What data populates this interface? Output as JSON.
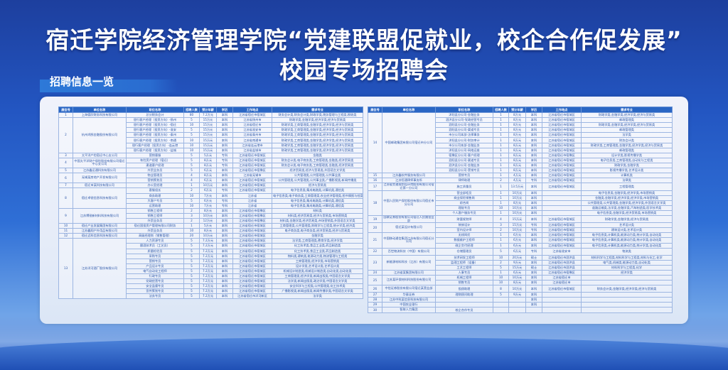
{
  "title": {
    "line1": "宿迁学院经济管理学院“党建联盟促就业，校企合作促发展”",
    "line2": "校园专场招聘会"
  },
  "section_title": "招聘信息一览",
  "columns": [
    "展位号",
    "单位名称",
    "职位名称",
    "招聘人数",
    "预计年薪",
    "学历",
    "工作地点",
    "需求专业"
  ],
  "colors": {
    "header_bg": "#2a66c4",
    "text": "#2b56a8",
    "background": "#2356c2"
  },
  "left_table": [
    {
      "booth": "1",
      "company": "上海德欣财务科技有限公司",
      "rows": [
        [
          "总分税务会计",
          "80",
          "7.2万元",
          "本科",
          "江苏省宿迁市宿城区",
          "财务会计类,财务会计类,财政学类,税务管理与工程类,税收类"
        ]
      ]
    },
    {
      "booth": "2",
      "company": "杭州鸿鹄金融股份有限公司",
      "rows": [
        [
          "银行客户经理（投资方向）-扬州",
          "5",
          "15万元",
          "本科",
          "江苏省扬州市",
          "财政学类,金融学类,经济学类,经济与贸易类"
        ],
        [
          "银行客户经理（投资方向）-宿迁",
          "10",
          "15万元",
          "本科",
          "江苏省宿迁市",
          "财政学类,工商管理类,金融学类,经济学类,经济与贸易类"
        ],
        [
          "银行客户经理（投资方向）-淮安",
          "5",
          "15万元",
          "本科",
          "江苏省淮安市",
          "财政学类,工商管理类,金融学类,经济学类,经济与贸易类"
        ],
        [
          "银行客户经理（投资方向）-泰州",
          "5",
          "15万元",
          "本科",
          "江苏省泰州市",
          "财政学类,工商管理类,金融学类,经济学类,经济与贸易类"
        ],
        [
          "银行客户经理（投资方向）-南通",
          "10",
          "15万元",
          "本科",
          "江苏省南通市",
          "财政学类,工商管理类,金融学类,经济学类,经济与贸易类"
        ],
        [
          "银行客户经理（投资方向）-连云港",
          "10",
          "15万元",
          "本科",
          "江苏省连云港市",
          "财政学类,工商管理类,金融学类,经济学类,经济与贸易类"
        ],
        [
          "银行客户经理（投资方向）-盐城",
          "10",
          "15万元",
          "本科",
          "江苏省盐城市",
          "财政学类,工商管理类,金融学类,经济学类,经济与贸易类"
        ]
      ]
    },
    {
      "booth": "3",
      "company": "太平洋产险宿迁中心支公司",
      "rows": [
        [
          "营销客服",
          "5",
          "5万元",
          "专科",
          "江苏省宿迁市宿城区",
          "金融类"
        ]
      ]
    },
    {
      "booth": "4",
      "company": "中国太平洋财产保险股份有限公司宿迁中心支公司",
      "rows": [
        [
          "车险资产经理（宿迁）",
          "5",
          "8万元",
          "专科",
          "江苏省宿迁市宿城区",
          "财务会计类,电子商务类,工商管理类,金融类,经济贸易类"
        ],
        [
          "渠道客户经理",
          "5",
          "8万元",
          "专科",
          "江苏省宿迁市宿城区",
          "财务会计类,电子商务类,工商管理类,金融类,经济贸易类"
        ]
      ]
    },
    {
      "booth": "5",
      "company": "江苏鑫运通科技有限公司",
      "rows": [
        [
          "外贸业务员",
          "5",
          "6万元",
          "本科",
          "江苏省宿迁市宿豫区",
          "经济贸易类,经济与贸易类,外国语言文学类"
        ]
      ]
    },
    {
      "booth": "6",
      "company": "无锡某房地产开发有限公司",
      "rows": [
        [
          "物业管理员",
          "4",
          "8万元",
          "本科",
          "江苏省无锡市",
          "公共管理类,公共管理类,公共事业类"
        ],
        [
          "营销策划员",
          "4",
          "6万元",
          "本科",
          "江苏省宿迁市宿城区",
          "公共管理类,公共管理类,公共事业类,广播影视类,新闻传播类"
        ]
      ]
    },
    {
      "booth": "7",
      "company": "宿迁市某科技有限公司",
      "rows": [
        [
          "办公室经理",
          "1",
          "10万元",
          "本科",
          "江苏省宿迁市宿城区",
          "经济与贸易类"
        ]
      ]
    },
    {
      "booth": "8",
      "company": "宿迁卓锐信息科技有限公司",
      "rows": [
        [
          "客服组长",
          "2",
          "6万元",
          "专科",
          "江苏省宿迁市宿城区",
          "电子信息类,集成电路类,计算机类,通信类"
        ],
        [
          "商务助理",
          "10",
          "7万元",
          "本科",
          "江苏省",
          "电子信息类,电子商务类,工商管理类,农业经济管理类,图书情报与档案管理类"
        ],
        [
          "大客户专员",
          "5",
          "6万元",
          "专科",
          "江苏省",
          "电子信息类,集成电路类,计算机类,通信类"
        ],
        [
          "运营助理",
          "10",
          "7万元",
          "专科",
          "江苏省",
          "电子信息类,集成电路类,计算机类,通信类"
        ]
      ]
    },
    {
      "booth": "9",
      "company": "江苏博锐新材料科技有限公司",
      "rows": [
        [
          "销售工程师",
          "2",
          "8万元",
          "本科",
          "江苏省宿迁市宿豫区",
          "材料类"
        ],
        [
          "销售工程师",
          "3",
          "10万元",
          "本科",
          "江苏省宿迁市宿豫区",
          "材料类,经济贸易类,经济与贸易类,市场营销类"
        ],
        [
          "外贸业务员",
          "2",
          "12万元",
          "本科",
          "江苏省宿迁市宿豫区",
          "材料类,金融学类,经济贸易类,市场营销类,外国语言文学类"
        ]
      ]
    },
    {
      "booth": "10",
      "company": "宿迁产业发展集团有限公司",
      "rows": [
        [
          "宿迁国投资产管理有限公司财务",
          "1",
          "5万元",
          "本科",
          "江苏省宿迁市宿城区",
          "工商管理类,公共管理类,财政学与工程类,统计学类,经济类"
        ]
      ]
    },
    {
      "booth": "11",
      "company": "江苏鑫翔户外用品有限公司",
      "rows": [
        [
          "外贸业务员",
          "10",
          "8万元",
          "本科",
          "江苏省宿迁市宿城区",
          "电子商务类,电子商务类,经济贸易类,经济与贸易类"
        ]
      ]
    },
    {
      "booth": "12",
      "company": "宿迁迈科信息科技有限公司",
      "rows": [
        [
          "高级经理岗（销售管理）",
          "20",
          "10万元",
          "本科",
          "江苏省宿迁市宿城区",
          "金融学类"
        ]
      ]
    },
    {
      "booth": "13",
      "company": "江苏洋河酒厂股份有限公司",
      "rows": [
        [
          "人力资源专员",
          "5",
          "7.2万元",
          "本科",
          "江苏省宿迁市宿城区",
          "法学类,工商管理类,教育学类,经济学类"
        ],
        [
          "酿酒技术员（工艺员）",
          "5",
          "7.2万元",
          "本科",
          "江苏省宿迁市宿城区",
          "化工技术类,食品工业类,药品制造类"
        ],
        [
          "质量检验员",
          "5",
          "7.2万元",
          "本科",
          "江苏省宿迁市宿城区",
          "化工技术类,食品工业类,药品制造类"
        ],
        [
          "采购专员",
          "5",
          "7.2万元",
          "本科",
          "江苏省宿迁市宿城区",
          "物料类,建筑类,能源动力类,物流管理与工程类"
        ],
        [
          "营销专员",
          "5",
          "7.2万元",
          "本科",
          "江苏省宿迁市宿城区",
          "工商管理类,经济学类,市场营销类"
        ],
        [
          "产品设计专员",
          "5",
          "7.2万元",
          "本科",
          "江苏省宿迁市宿城区",
          "设计学类,艺术设计类,艺术设计类"
        ],
        [
          "电气自动化工程师",
          "5",
          "7.2万元",
          "本科",
          "江苏省宿迁市宿城区",
          "机械设计制造类,机械设计制造类,自动化类,自动化类"
        ],
        [
          "行政专员",
          "5",
          "7.2万元",
          "本科",
          "江苏省宿迁市宿城区",
          "工商管理类,经济学类,新闻出版类,中国语言文学类"
        ],
        [
          "党政经营专员",
          "5",
          "7.2万元",
          "本科",
          "江苏省宿迁市宿城区",
          "法学类,新闻出版类,政治学类,中国语言文学类"
        ],
        [
          "安全监督专员",
          "5",
          "7.2万元",
          "本科",
          "江苏省宿迁市宿城区",
          "安全科学与工程类,公共管理类,化工技术类"
        ],
        [
          "宣传策划专员",
          "5",
          "7.2万元",
          "本科",
          "江苏省宿迁市宿城区",
          "广播影视类,新闻出版类,新闻传播学类,中国语言文学类"
        ],
        [
          "法务专员",
          "5",
          "7.2万元",
          "本科",
          "江苏省宿迁市洋河新区",
          "法学类"
        ]
      ]
    }
  ],
  "right_table": [
    {
      "booth": "14",
      "company": "中国邮政集团有限公司宿迁市分公司",
      "rows": [
        [
          "沭阳县分公司-金融业务",
          "1",
          "8万元",
          "本科",
          "江苏省宿迁市宿城区",
          "财政学类,金融学类,经济学类,经济与贸易类"
        ],
        [
          "泗洪县分公司-党政经营专员",
          "1",
          "8万元",
          "本科",
          "江苏省宿迁市宿城区",
          "邮政管理类"
        ],
        [
          "泗阳县分公司-金融业务",
          "1",
          "8万元",
          "本科",
          "江苏省宿迁市宿城区",
          "财政学类,金融学类,经济学类,经济与贸易类"
        ],
        [
          "泗阳县分公司-渠道专员",
          "1",
          "8万元",
          "本科",
          "江苏省宿迁市宿城区",
          "邮政管理类"
        ],
        [
          "市分公司本部-法律事务",
          "1",
          "8万元",
          "本科",
          "江苏省宿迁市宿城区",
          "法学类"
        ],
        [
          "沭阳县分公司-财务审计",
          "1",
          "8万元",
          "本科",
          "江苏省宿迁市宿城区",
          "财务会计类"
        ],
        [
          "市分公司本部-金融业务",
          "1",
          "8万元",
          "本科",
          "江苏省宿迁市宿城区",
          "财政学类,工商管理类,金融学类,经济学类,经济与贸易类"
        ],
        [
          "沭阳县分公司-网络运维",
          "1",
          "8万元",
          "本科",
          "江苏省宿迁市宿城区",
          "邮政管理类"
        ],
        [
          "宿豫区分公司-客户经理",
          "1",
          "8万元",
          "本科",
          "江苏省宿迁市宿豫区",
          "设计学类,影视传播学类"
        ],
        [
          "泗阳县分公司-渠道专员",
          "1",
          "8万元",
          "本科",
          "江苏省宿迁市宿城区",
          "电子信息类,工商管理类,自动化与工程类"
        ],
        [
          "泗洪县分公司-金融业务",
          "1",
          "8万元",
          "本科",
          "江苏省宿迁市宿城区",
          "财政学类,金融学类"
        ],
        [
          "泗阳县分公司-营销专员",
          "1",
          "8万元",
          "本科",
          "江苏省宿迁市宿城区",
          "影视传播学类,艺术设计类"
        ]
      ]
    },
    {
      "booth": "15",
      "company": "江苏鑫软件服务有限公司",
      "rows": [
        [
          "营销专员",
          "1",
          "4万元",
          "本科",
          "江苏省宿迁市宿城区",
          "计算机类"
        ]
      ]
    },
    {
      "booth": "16",
      "company": "江苏恒通律师事务所",
      "rows": [
        [
          "律师助理",
          "2",
          "4万元",
          "专科",
          "江苏省宿迁市宿城区",
          "法律类"
        ]
      ]
    },
    {
      "booth": "17",
      "company": "江苏省交通规划设计院股份有限公司宿迁第一分公司",
      "tall": true,
      "rows": [
        [
          "施工质量员",
          "1",
          "13.5万元",
          "本科",
          "江苏省宿迁市宿城区",
          "工程管理类"
        ]
      ]
    },
    {
      "booth": "18",
      "company": "中国人民财产保险股份有限公司宿迁市分公司",
      "rows": [
        [
          "营业部柜员",
          "1",
          "10万元",
          "本科",
          "",
          "电子信息类,金融学类,经济学类,市场营销类"
        ],
        [
          "商业保险销售岗",
          "1",
          "10万元",
          "本科",
          "",
          "金融类,金融学类,经济学类,经济学类,市场营销类"
        ],
        [
          "综合岗",
          "1",
          "8万元",
          "本科",
          "",
          "公共管理类,公共管理类,金融学类,经济学类,外国语言文学类"
        ],
        [
          "理赔专员",
          "10",
          "10万元",
          "本科",
          "",
          "道路运输类,法学类,金融学类,汽车制造类,医学技术类"
        ],
        [
          "个人客户服务专员",
          "1",
          "10万元",
          "本科",
          "",
          "电子信息类,金融学类,经济贸易类,市场营销类"
        ]
      ]
    },
    {
      "booth": "19",
      "company": "国联证券股份有限公司宿迁人民路营业部",
      "tall": true,
      "rows": [
        [
          "财富规划师",
          "4",
          "15万元",
          "本科",
          "江苏省宿迁市宿城区",
          "财政学类,金融学类,经济与贸易类"
        ]
      ]
    },
    {
      "booth": "20",
      "company": "宿迁某设计有限公司",
      "rows": [
        [
          "装修设计",
          "3",
          "15万元",
          "专科",
          "江苏省宿迁市宿城区",
          "艺术设计类"
        ],
        [
          "室内设计师",
          "2",
          "10万元",
          "专科",
          "江苏省宿迁市宿城区",
          "建筑设计类,艺术设计类"
        ]
      ]
    },
    {
      "booth": "21",
      "company": "中国移动通信集团江苏有限公司宿迁分公司",
      "rows": [
        [
          "无线网优",
          "1",
          "6万元",
          "本科",
          "江苏省宿迁市宿城区",
          "电子信息类,计算机类,能源动力类,统计学类,自动化类"
        ],
        [
          "数据维护工程师",
          "1",
          "6万元",
          "本科",
          "江苏省宿迁市宿城区",
          "电子信息类,计算机类,能源动力类,统计学类,自动化类"
        ],
        [
          "政企交付经理",
          "1",
          "6万元",
          "本科",
          "江苏省宿迁市宿城区",
          "电子信息类,计算机类,能源动力类,统计学类,自动化类"
        ]
      ]
    },
    {
      "booth": "22",
      "company": "百世物流科技（中国）有限公司",
      "tall": true,
      "rows": [
        [
          "仓储管理员",
          "5",
          "6万元",
          "专科",
          "江苏省淮安市",
          "物流类"
        ]
      ]
    },
    {
      "booth": "23",
      "company": "新能源材料科技（江苏）有限公司",
      "rows": [
        [
          "技术研发工程师",
          "10",
          "20万元",
          "硕士",
          "江苏省宿迁市泗洪县",
          "材料科学与工程类,材料科学与工程类,材料与化工,化学"
        ],
        [
          "监理工程师（设备）",
          "2",
          "9万元",
          "本科",
          "江苏省宿迁市泗洪县",
          "电气类,机械类,能源动力类,自动化类"
        ],
        [
          "工艺工程师",
          "5",
          "15万元",
          "硕士",
          "江苏省宿迁市泗洪县",
          "材料科学与工程类,化学"
        ]
      ]
    },
    {
      "booth": "24",
      "company": "江苏省某集团有限公司",
      "rows": [
        [
          "人事专员",
          "1",
          "6万元",
          "本科",
          "江苏省宿迁市宿豫区",
          "经济学类"
        ]
      ]
    },
    {
      "booth": "25",
      "company": "江苏某环保材料科技股份有限公司",
      "rows": [
        [
          "机械工程师",
          "10",
          "10万元",
          "本科",
          "江苏省宿迁市",
          ""
        ],
        [
          "销售专员",
          "10",
          "8万元",
          "本科",
          "江苏省宿迁市",
          ""
        ]
      ]
    },
    {
      "booth": "26",
      "company": "中信证券股份有限公司宿迁某营业部",
      "tall": true,
      "rows": [
        [
          "投顾助理",
          "8",
          "10万元",
          "本科",
          "江苏省宿迁市宿城区",
          "财务会计类,金融学类,经济学类,经济与贸易类"
        ]
      ]
    },
    {
      "booth": "27",
      "company": "华泰证券",
      "rows": [
        [
          "理财顾问助理",
          "5",
          "9万元",
          "本科",
          "",
          ""
        ]
      ]
    },
    {
      "booth": "28",
      "company": "江苏中科某信息科技有限公司",
      "rows": [
        [
          "",
          "",
          "",
          "本科",
          "",
          ""
        ]
      ]
    },
    {
      "booth": "29",
      "company": "中国农业银行",
      "rows": [
        [
          "",
          "",
          "",
          "本科",
          "",
          ""
        ]
      ]
    },
    {
      "booth": "30",
      "company": "智联人力集团",
      "rows": [
        [
          "校企合作专员",
          "",
          "",
          "",
          "",
          ""
        ]
      ]
    }
  ]
}
